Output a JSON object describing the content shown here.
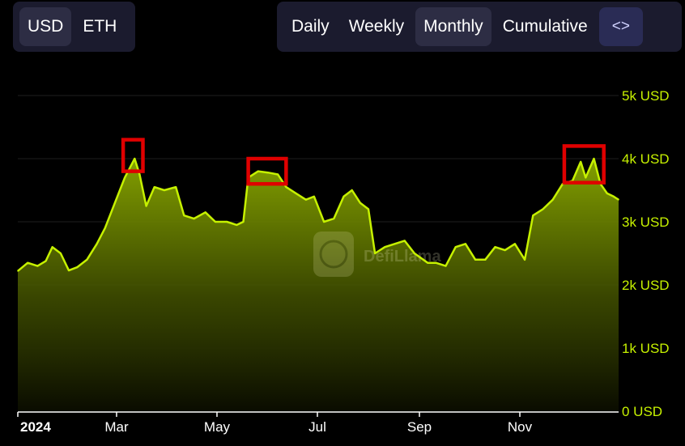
{
  "currency_toggle": [
    {
      "label": "USD",
      "active": true
    },
    {
      "label": "ETH",
      "active": false
    }
  ],
  "period_toggle": [
    {
      "label": "Daily",
      "active": false
    },
    {
      "label": "Weekly",
      "active": false
    },
    {
      "label": "Monthly",
      "active": true
    },
    {
      "label": "Cumulative",
      "active": false
    }
  ],
  "embed_button": {
    "icon": "code-brackets-icon",
    "label": "<>"
  },
  "watermark": "DefiLlama",
  "colors": {
    "line": "#c6f100",
    "tick_y": "#c6f100",
    "highlight": "#e00000",
    "background": "#000000"
  },
  "chart_data": {
    "type": "area",
    "title": "",
    "xlabel": "",
    "ylabel": "",
    "ylim": [
      0,
      5000
    ],
    "grid": true,
    "y_ticks": [
      {
        "value": 0,
        "label": "0 USD"
      },
      {
        "value": 1000,
        "label": "1k USD"
      },
      {
        "value": 2000,
        "label": "2k USD"
      },
      {
        "value": 3000,
        "label": "3k USD"
      },
      {
        "value": 4000,
        "label": "4k USD"
      },
      {
        "value": 5000,
        "label": "5k USD"
      }
    ],
    "x_ticks": [
      {
        "date": "2024-01-01",
        "label": "2024",
        "bold": true
      },
      {
        "date": "2024-03-01",
        "label": "Mar",
        "bold": false
      },
      {
        "date": "2024-05-01",
        "label": "May",
        "bold": false
      },
      {
        "date": "2024-07-01",
        "label": "Jul",
        "bold": false
      },
      {
        "date": "2024-09-01",
        "label": "Sep",
        "bold": false
      },
      {
        "date": "2024-11-01",
        "label": "Nov",
        "bold": false
      }
    ],
    "x_range": [
      "2024-01-01",
      "2024-12-31"
    ],
    "series": [
      {
        "points": [
          [
            "2024-01-01",
            2220
          ],
          [
            "2024-01-07",
            2350
          ],
          [
            "2024-01-13",
            2300
          ],
          [
            "2024-01-18",
            2380
          ],
          [
            "2024-01-22",
            2600
          ],
          [
            "2024-01-27",
            2500
          ],
          [
            "2024-02-01",
            2230
          ],
          [
            "2024-02-06",
            2280
          ],
          [
            "2024-02-12",
            2400
          ],
          [
            "2024-02-18",
            2650
          ],
          [
            "2024-02-23",
            2900
          ],
          [
            "2024-02-29",
            3300
          ],
          [
            "2024-03-06",
            3700
          ],
          [
            "2024-03-12",
            4000
          ],
          [
            "2024-03-15",
            3750
          ],
          [
            "2024-03-19",
            3250
          ],
          [
            "2024-03-24",
            3550
          ],
          [
            "2024-03-30",
            3500
          ],
          [
            "2024-04-06",
            3550
          ],
          [
            "2024-04-11",
            3100
          ],
          [
            "2024-04-17",
            3050
          ],
          [
            "2024-04-24",
            3150
          ],
          [
            "2024-04-30",
            3000
          ],
          [
            "2024-05-07",
            3000
          ],
          [
            "2024-05-13",
            2950
          ],
          [
            "2024-05-17",
            3000
          ],
          [
            "2024-05-20",
            3700
          ],
          [
            "2024-05-26",
            3800
          ],
          [
            "2024-06-01",
            3780
          ],
          [
            "2024-06-07",
            3750
          ],
          [
            "2024-06-12",
            3550
          ],
          [
            "2024-06-18",
            3450
          ],
          [
            "2024-06-24",
            3350
          ],
          [
            "2024-06-29",
            3400
          ],
          [
            "2024-07-05",
            3000
          ],
          [
            "2024-07-11",
            3050
          ],
          [
            "2024-07-17",
            3400
          ],
          [
            "2024-07-22",
            3500
          ],
          [
            "2024-07-27",
            3300
          ],
          [
            "2024-08-01",
            3200
          ],
          [
            "2024-08-05",
            2500
          ],
          [
            "2024-08-11",
            2600
          ],
          [
            "2024-08-17",
            2650
          ],
          [
            "2024-08-23",
            2700
          ],
          [
            "2024-08-29",
            2500
          ],
          [
            "2024-09-06",
            2350
          ],
          [
            "2024-09-11",
            2350
          ],
          [
            "2024-09-17",
            2300
          ],
          [
            "2024-09-23",
            2600
          ],
          [
            "2024-09-29",
            2650
          ],
          [
            "2024-10-05",
            2400
          ],
          [
            "2024-10-11",
            2400
          ],
          [
            "2024-10-17",
            2600
          ],
          [
            "2024-10-23",
            2550
          ],
          [
            "2024-10-29",
            2650
          ],
          [
            "2024-11-04",
            2400
          ],
          [
            "2024-11-09",
            3100
          ],
          [
            "2024-11-15",
            3200
          ],
          [
            "2024-11-21",
            3350
          ],
          [
            "2024-11-27",
            3600
          ],
          [
            "2024-12-03",
            3650
          ],
          [
            "2024-12-08",
            3950
          ],
          [
            "2024-12-11",
            3700
          ],
          [
            "2024-12-16",
            4000
          ],
          [
            "2024-12-20",
            3600
          ],
          [
            "2024-12-24",
            3450
          ],
          [
            "2024-12-28",
            3400
          ],
          [
            "2024-12-31",
            3350
          ]
        ]
      }
    ],
    "highlights": [
      {
        "from": "2024-03-05",
        "to": "2024-03-17",
        "y_from": 3800,
        "y_to": 4300
      },
      {
        "from": "2024-05-20",
        "to": "2024-06-12",
        "y_from": 3600,
        "y_to": 4000
      },
      {
        "from": "2024-11-28",
        "to": "2024-12-22",
        "y_from": 3620,
        "y_to": 4200
      }
    ]
  }
}
